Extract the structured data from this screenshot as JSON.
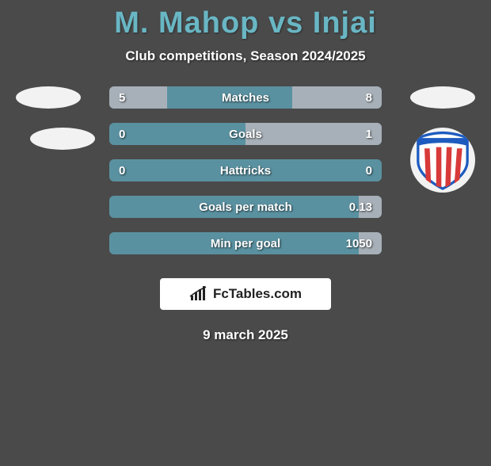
{
  "title": "M. Mahop vs Injai",
  "subtitle": "Club competitions, Season 2024/2025",
  "date": "9 march 2025",
  "brand": "FcTables.com",
  "colors": {
    "page_bg": "#4a4a4a",
    "title_color": "#69b6c4",
    "bar_bg": "#5a91a0",
    "bar_fill": "#a7b0b8",
    "text": "#ffffff",
    "brand_bg": "#ffffff",
    "brand_text": "#222222"
  },
  "stats": [
    {
      "label": "Matches",
      "left_text": "5",
      "right_text": "8",
      "left_val": 5,
      "right_val": 8,
      "max": 13
    },
    {
      "label": "Goals",
      "left_text": "0",
      "right_text": "1",
      "left_val": 0,
      "right_val": 1,
      "max": 1
    },
    {
      "label": "Hattricks",
      "left_text": "0",
      "right_text": "0",
      "left_val": 0,
      "right_val": 0,
      "max": 1
    },
    {
      "label": "Goals per match",
      "left_text": "",
      "right_text": "0.13",
      "left_val": 0,
      "right_val": 0.13,
      "max": 1
    },
    {
      "label": "Min per goal",
      "left_text": "",
      "right_text": "1050",
      "left_val": 0,
      "right_val": 1050,
      "max": 8000
    }
  ],
  "logo_right_2": {
    "shield_fill": "#ffffff",
    "shield_stroke": "#1d5bbf",
    "stripes": "#d83a3a",
    "top_band": "#1d5bbf"
  }
}
